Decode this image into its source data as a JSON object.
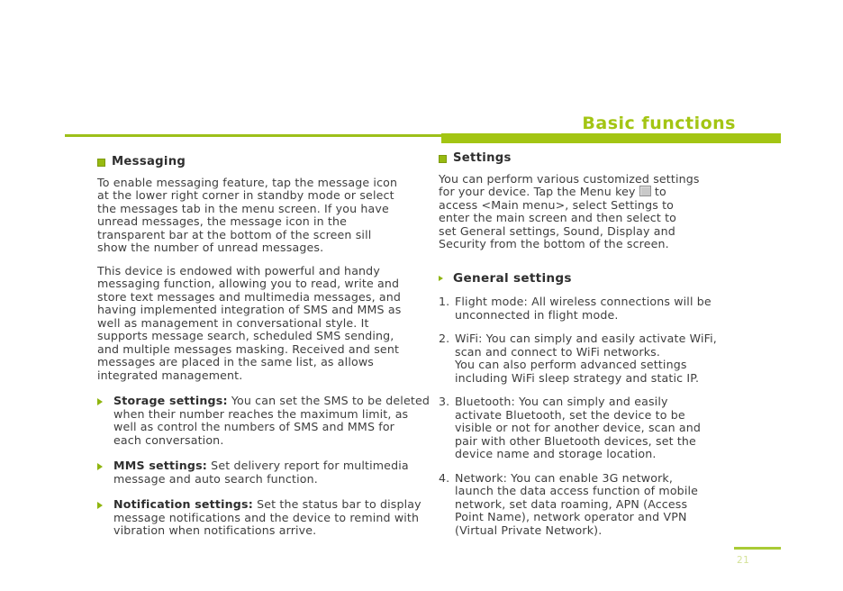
{
  "header": {
    "title": "Basic functions"
  },
  "footer": {
    "page_number": "21"
  },
  "messaging": {
    "heading": "Messaging",
    "para1": "To enable messaging feature, tap the message icon\nat the lower right corner in standby mode or select\nthe messages tab in the menu screen. If you have\nunread messages, the message icon in the\ntransparent bar at the bottom of the screen sill\nshow the number of unread messages.",
    "para2": "This device is endowed with powerful and handy\nmessaging function, allowing you to read, write and\nstore text messages and multimedia messages, and\nhaving implemented integration of SMS and MMS as\nwell as management in conversational style. It\nsupports message search, scheduled SMS sending,\nand multiple messages masking. Received and sent\nmessages are placed in the same list, as allows\nintegrated management.",
    "items": [
      {
        "label": "Storage settings:",
        "text": " You can set the SMS to be deleted\nwhen their number reaches the maximum limit, as\nwell as control the numbers of SMS and MMS for\neach conversation."
      },
      {
        "label": "MMS settings:",
        "text": " Set delivery report for multimedia\nmessage and auto search function."
      },
      {
        "label": "Notification settings:",
        "text": " Set the status bar to display\nmessage notifications and the device to remind with\nvibration when notifications arrive."
      }
    ]
  },
  "settings": {
    "heading": "Settings",
    "para_before_icon": "You can perform various customized settings\nfor your device. Tap the Menu key ",
    "menu_key_icon": "menu-key-grid",
    "para_after_icon": " to\naccess <Main menu>, select Settings to\nenter the main screen and then select to\nset General settings, Sound, Display and\nSecurity from the bottom of the screen.",
    "general": {
      "heading": "General settings",
      "items": [
        {
          "num": "1.",
          "text": "Flight mode: All wireless connections will be\nunconnected in flight mode."
        },
        {
          "num": "2.",
          "text": "WiFi: You can simply and easily activate WiFi,\nscan and connect to WiFi networks.\nYou can also perform advanced settings\nincluding WiFi sleep strategy and static IP."
        },
        {
          "num": "3.",
          "text": "Bluetooth: You can simply and easily\nactivate Bluetooth, set the device to be\nvisible or not for another device, scan and\npair with other Bluetooth devices, set the\ndevice name and storage location."
        },
        {
          "num": "4.",
          "text": "Network: You can enable 3G network,\nlaunch the data access function of mobile\nnetwork, set data roaming, APN (Access\nPoint Name), network operator and VPN\n(Virtual Private Network)."
        }
      ]
    }
  },
  "colors": {
    "accent_green": "#a3c513",
    "body_text": "#3e3e3e",
    "page_number_green": "#d4e298"
  }
}
